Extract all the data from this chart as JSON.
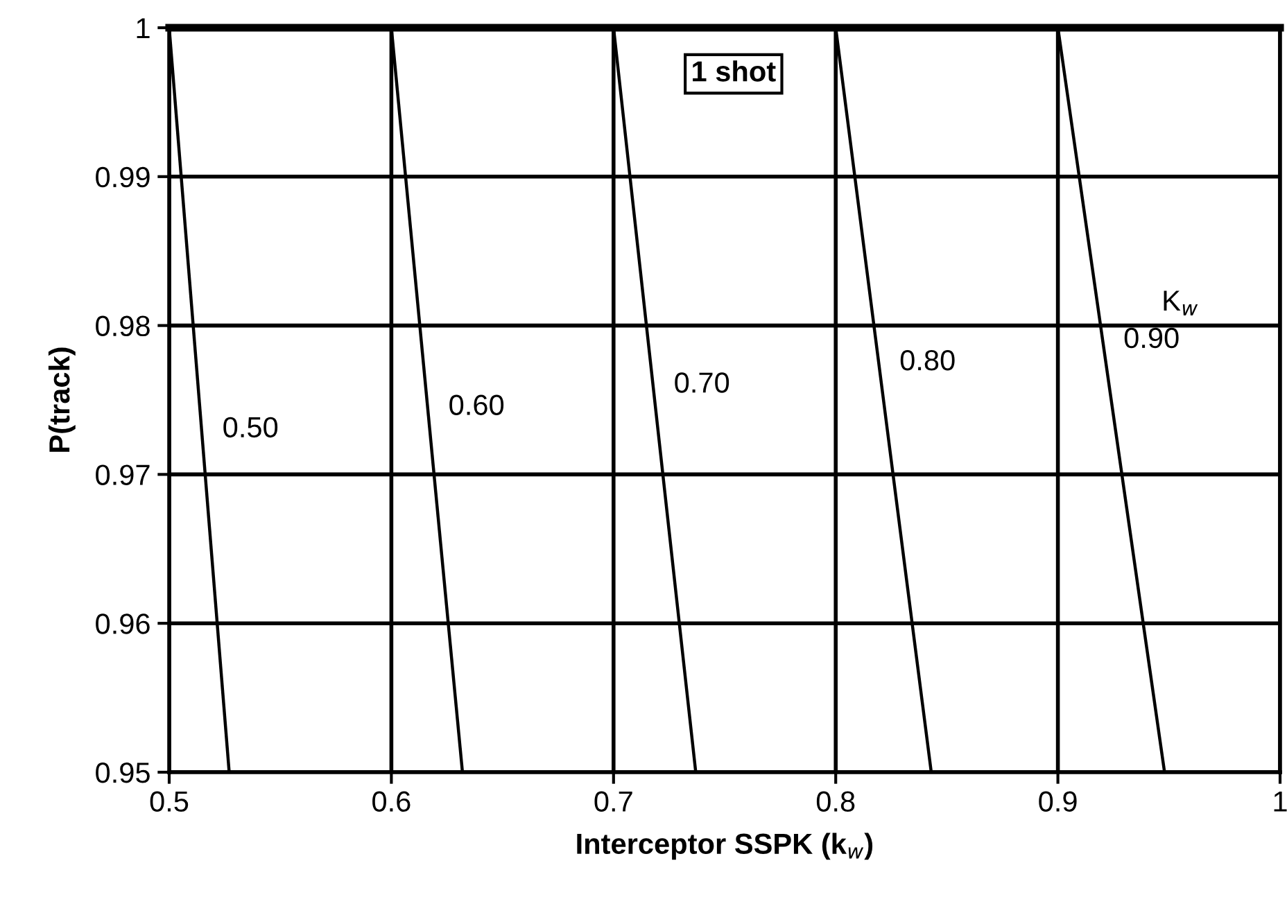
{
  "chart_data": {
    "type": "line",
    "xlabel": "Interceptor SSPK (k$_{w}$)",
    "ylabel": "P(track)",
    "xlim": [
      0.5,
      1
    ],
    "ylim": [
      0.95,
      1
    ],
    "xticks": [
      0.5,
      0.6,
      0.7,
      0.8,
      0.9,
      1
    ],
    "yticks": [
      0.95,
      0.96,
      0.97,
      0.98,
      0.99,
      1
    ],
    "grid": true,
    "legend": false,
    "marker": "none",
    "line_style": "solid",
    "series": [
      {
        "name": "0.50",
        "color": "#000000",
        "x": [
          0.5,
          0.527
        ],
        "values": [
          1,
          0.95
        ]
      },
      {
        "name": "0.60",
        "color": "#000000",
        "x": [
          0.6,
          0.632
        ],
        "values": [
          1,
          0.95
        ]
      },
      {
        "name": "0.70",
        "color": "#000000",
        "x": [
          0.7,
          0.737
        ],
        "values": [
          1,
          0.95
        ]
      },
      {
        "name": "0.80",
        "color": "#000000",
        "x": [
          0.8,
          0.843
        ],
        "values": [
          1,
          0.95
        ]
      },
      {
        "name": "0.90",
        "color": "#000000",
        "x": [
          0.9,
          0.948
        ],
        "values": [
          1,
          0.95
        ]
      }
    ],
    "annotations": [
      "1 shot",
      "K$_{w}$"
    ]
  }
}
